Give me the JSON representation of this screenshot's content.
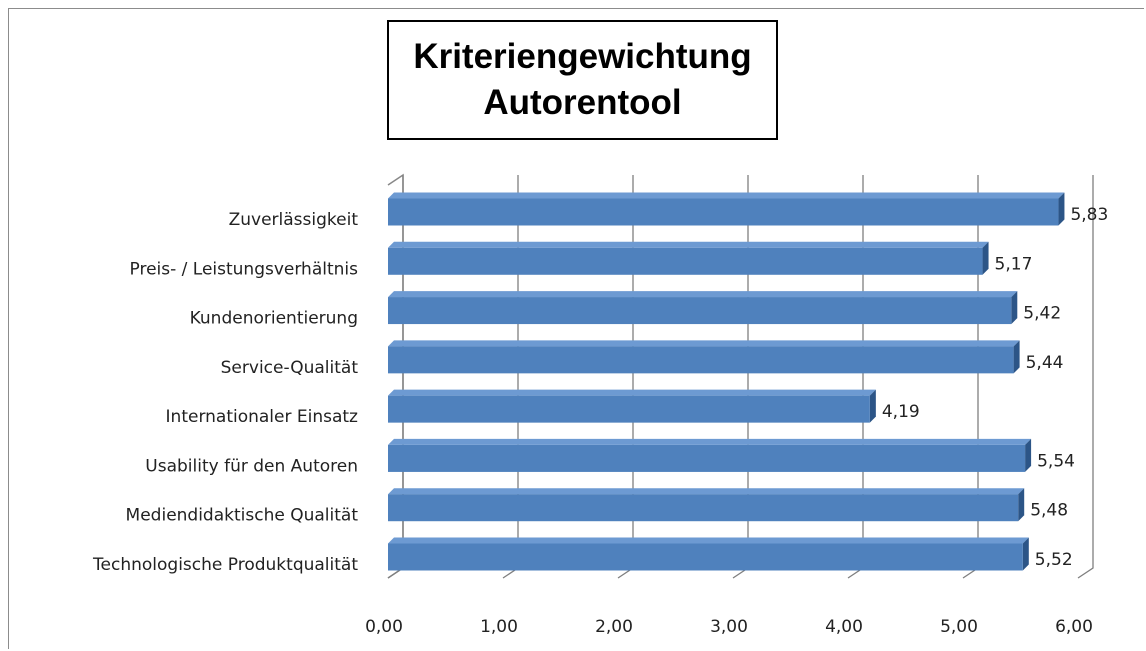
{
  "chart_data": {
    "type": "bar",
    "orientation": "horizontal",
    "title": "Kriteriengewichtung\nAutorentool",
    "categories": [
      "Zuverlässigkeit",
      "Preis- / Leistungsverhältnis",
      "Kundenorientierung",
      "Service-Qualität",
      "Internationaler Einsatz",
      "Usability für den Autoren",
      "Mediendidaktische Qualität",
      "Technologische Produktqualität"
    ],
    "values": [
      5.83,
      5.17,
      5.42,
      5.44,
      4.19,
      5.54,
      5.48,
      5.52
    ],
    "value_labels": [
      "5,83",
      "5,17",
      "5,42",
      "5,44",
      "4,19",
      "5,54",
      "5,48",
      "5,52"
    ],
    "color": "#4f81bd",
    "xlim": [
      0,
      6
    ],
    "xticks": [
      {
        "value": 0,
        "label": "0,00"
      },
      {
        "value": 1,
        "label": "1,00"
      },
      {
        "value": 2,
        "label": "2,00"
      },
      {
        "value": 3,
        "label": "3,00"
      },
      {
        "value": 4,
        "label": "4,00"
      },
      {
        "value": 5,
        "label": "5,00"
      },
      {
        "value": 6,
        "label": "6,00"
      }
    ],
    "grid": true
  }
}
